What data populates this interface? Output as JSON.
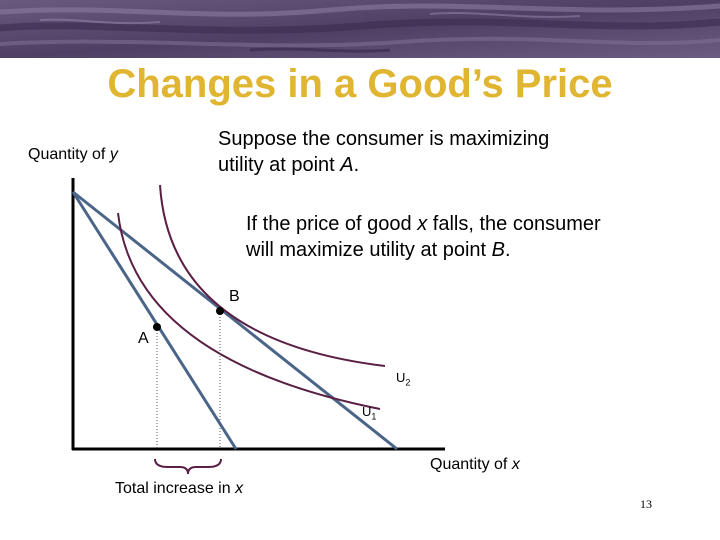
{
  "slide": {
    "title": "Changes in a Good’s Price",
    "page_number": "13"
  },
  "diagram": {
    "y_axis_label": {
      "prefix": "Quantity of ",
      "var": "y"
    },
    "x_axis_label": {
      "prefix": "Quantity of ",
      "var": "x"
    },
    "note_1": {
      "line1": "Suppose the consumer is maximizing",
      "line2_prefix": "utility at point ",
      "line2_var": "A",
      "line2_suffix": "."
    },
    "note_2": {
      "line1_prefix": "If the price of good ",
      "line1_var": "x",
      "line1_suffix": " falls, the consumer",
      "line2_prefix": "will maximize utility at point ",
      "line2_var": "B",
      "line2_suffix": "."
    },
    "point_a_label": "A",
    "point_b_label": "B",
    "curve_u2_label": {
      "base": "U",
      "sub": "2"
    },
    "curve_u1_label": {
      "base": "U",
      "sub": "1"
    },
    "increase_label": {
      "prefix": "Total increase in ",
      "var": "x"
    }
  },
  "colors": {
    "title": "#e0b531",
    "budget_line": "#4a6587",
    "indifference_curve": "#5a1f45",
    "banner": "#5a4a6e"
  }
}
